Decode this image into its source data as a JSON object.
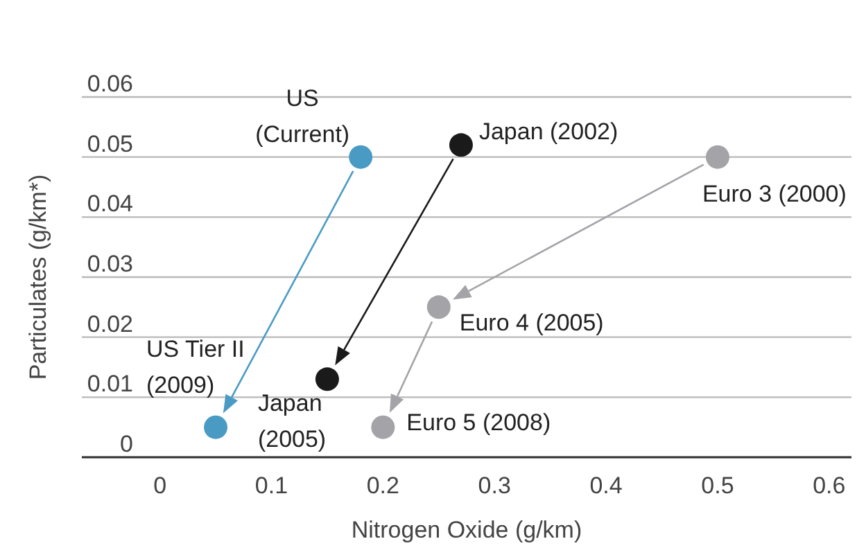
{
  "chart_data": {
    "type": "scatter",
    "xlabel": "Nitrogen Oxide (g/km)",
    "ylabel": "Particulates (g/km*)",
    "xlim": [
      -0.07,
      0.62
    ],
    "xticks": [
      0,
      0.1,
      0.2,
      0.3,
      0.4,
      0.5,
      0.6
    ],
    "ylim": [
      0,
      0.06
    ],
    "yticks": [
      0,
      0.01,
      0.02,
      0.03,
      0.04,
      0.05,
      0.06
    ],
    "grid": "y",
    "marker": "circle",
    "series": [
      {
        "color": "#4a9bc4",
        "x": [
          0.18,
          0.05
        ],
        "values": [
          0.05,
          0.005
        ]
      },
      {
        "color": "#1a1a1a",
        "x": [
          0.27,
          0.15
        ],
        "values": [
          0.052,
          0.013
        ]
      },
      {
        "color": "#a3a3a8",
        "x": [
          0.5,
          0.25,
          0.2
        ],
        "values": [
          0.05,
          0.025,
          0.005
        ]
      }
    ],
    "annotations": [
      {
        "text": "US (Current)",
        "x": 0.18,
        "y": 0.05
      },
      {
        "text": "US Tier II (2009)",
        "x": 0.05,
        "y": 0.005
      },
      {
        "text": "Japan (2002)",
        "x": 0.27,
        "y": 0.052
      },
      {
        "text": "Japan (2005)",
        "x": 0.15,
        "y": 0.013
      },
      {
        "text": "Euro 3 (2000)",
        "x": 0.5,
        "y": 0.05
      },
      {
        "text": "Euro 4 (2005)",
        "x": 0.25,
        "y": 0.025
      },
      {
        "text": "Euro 5 (2008)",
        "x": 0.2,
        "y": 0.005
      }
    ]
  }
}
